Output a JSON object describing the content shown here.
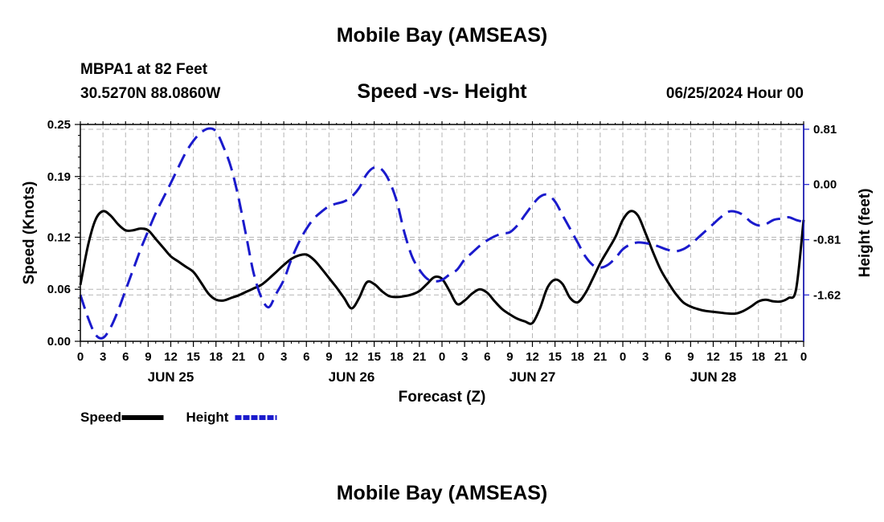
{
  "header": {
    "title": "Mobile Bay (AMSEAS)",
    "station": "MBPA1 at 82 Feet",
    "coords": "30.5270N  88.0860W",
    "datetime": "06/25/2024 Hour 00",
    "footer_title": "Mobile Bay (AMSEAS)"
  },
  "chart_data": {
    "type": "line",
    "title": "Speed -vs- Height",
    "xlabel": "Forecast (Z)",
    "ylabel_left": "Speed (Knots)",
    "ylabel_right": "Height (feet)",
    "x_range_hours": [
      0,
      96
    ],
    "x_tick_labels": [
      "0",
      "3",
      "6",
      "9",
      "12",
      "15",
      "18",
      "21",
      "0",
      "3",
      "6",
      "9",
      "12",
      "15",
      "18",
      "21",
      "0",
      "3",
      "6",
      "9",
      "12",
      "15",
      "18",
      "21",
      "0",
      "3",
      "6",
      "9",
      "12",
      "15",
      "18",
      "21",
      "0"
    ],
    "day_labels": [
      {
        "label": "JUN 25",
        "hour": 12
      },
      {
        "label": "JUN 26",
        "hour": 36
      },
      {
        "label": "JUN 27",
        "hour": 60
      },
      {
        "label": "JUN 28",
        "hour": 84
      }
    ],
    "y_left": {
      "ticks": [
        0.0,
        0.06,
        0.12,
        0.19,
        0.25
      ],
      "tick_labels": [
        "0.00",
        "0.06",
        "0.12",
        "0.19",
        "0.25"
      ],
      "range": [
        0,
        0.25
      ]
    },
    "y_right": {
      "ticks": [
        -1.62,
        -0.81,
        0.0,
        0.81
      ],
      "tick_labels": [
        "-1.62",
        "-0.81",
        "0.00",
        "0.81"
      ],
      "range": [
        -2.3,
        0.88
      ]
    },
    "legend": [
      {
        "name": "Speed",
        "color": "#000000",
        "style": "solid"
      },
      {
        "name": "Height",
        "color": "#1a1acc",
        "style": "dashed"
      }
    ],
    "series": [
      {
        "name": "Speed",
        "axis": "left",
        "color": "#000000",
        "points": [
          [
            0,
            0.065
          ],
          [
            1,
            0.11
          ],
          [
            2,
            0.14
          ],
          [
            3,
            0.15
          ],
          [
            4,
            0.145
          ],
          [
            5,
            0.135
          ],
          [
            6,
            0.128
          ],
          [
            7,
            0.128
          ],
          [
            8,
            0.13
          ],
          [
            9,
            0.128
          ],
          [
            10,
            0.118
          ],
          [
            11,
            0.108
          ],
          [
            12,
            0.098
          ],
          [
            13,
            0.092
          ],
          [
            14,
            0.086
          ],
          [
            15,
            0.08
          ],
          [
            16,
            0.068
          ],
          [
            17,
            0.055
          ],
          [
            18,
            0.048
          ],
          [
            19,
            0.047
          ],
          [
            20,
            0.05
          ],
          [
            21,
            0.053
          ],
          [
            22,
            0.057
          ],
          [
            23,
            0.061
          ],
          [
            24,
            0.065
          ],
          [
            25,
            0.072
          ],
          [
            26,
            0.08
          ],
          [
            27,
            0.088
          ],
          [
            28,
            0.095
          ],
          [
            29,
            0.099
          ],
          [
            30,
            0.1
          ],
          [
            31,
            0.094
          ],
          [
            32,
            0.084
          ],
          [
            33,
            0.073
          ],
          [
            34,
            0.062
          ],
          [
            35,
            0.05
          ],
          [
            36,
            0.038
          ],
          [
            37,
            0.05
          ],
          [
            38,
            0.068
          ],
          [
            39,
            0.066
          ],
          [
            40,
            0.058
          ],
          [
            41,
            0.052
          ],
          [
            42,
            0.051
          ],
          [
            43,
            0.052
          ],
          [
            44,
            0.054
          ],
          [
            45,
            0.058
          ],
          [
            46,
            0.066
          ],
          [
            47,
            0.074
          ],
          [
            48,
            0.072
          ],
          [
            49,
            0.058
          ],
          [
            50,
            0.043
          ],
          [
            51,
            0.047
          ],
          [
            52,
            0.055
          ],
          [
            53,
            0.06
          ],
          [
            54,
            0.056
          ],
          [
            55,
            0.046
          ],
          [
            56,
            0.037
          ],
          [
            57,
            0.031
          ],
          [
            58,
            0.026
          ],
          [
            59,
            0.023
          ],
          [
            60,
            0.021
          ],
          [
            61,
            0.038
          ],
          [
            62,
            0.062
          ],
          [
            63,
            0.071
          ],
          [
            64,
            0.066
          ],
          [
            65,
            0.05
          ],
          [
            66,
            0.045
          ],
          [
            67,
            0.055
          ],
          [
            68,
            0.072
          ],
          [
            69,
            0.09
          ],
          [
            70,
            0.105
          ],
          [
            71,
            0.12
          ],
          [
            72,
            0.14
          ],
          [
            73,
            0.15
          ],
          [
            74,
            0.145
          ],
          [
            75,
            0.125
          ],
          [
            76,
            0.103
          ],
          [
            77,
            0.083
          ],
          [
            78,
            0.068
          ],
          [
            79,
            0.055
          ],
          [
            80,
            0.045
          ],
          [
            81,
            0.04
          ],
          [
            82,
            0.037
          ],
          [
            83,
            0.035
          ],
          [
            84,
            0.034
          ],
          [
            85,
            0.033
          ],
          [
            86,
            0.032
          ],
          [
            87,
            0.032
          ],
          [
            88,
            0.035
          ],
          [
            89,
            0.04
          ],
          [
            90,
            0.046
          ],
          [
            91,
            0.048
          ],
          [
            92,
            0.046
          ],
          [
            93,
            0.046
          ],
          [
            94,
            0.05
          ],
          [
            95,
            0.06
          ],
          [
            96,
            0.14
          ]
        ]
      },
      {
        "name": "Height",
        "axis": "right",
        "color": "#1a1acc",
        "points": [
          [
            0,
            -1.62
          ],
          [
            1,
            -1.95
          ],
          [
            2,
            -2.2
          ],
          [
            3,
            -2.25
          ],
          [
            4,
            -2.1
          ],
          [
            5,
            -1.85
          ],
          [
            6,
            -1.55
          ],
          [
            7,
            -1.25
          ],
          [
            8,
            -0.95
          ],
          [
            9,
            -0.68
          ],
          [
            10,
            -0.42
          ],
          [
            11,
            -0.2
          ],
          [
            12,
            0.02
          ],
          [
            13,
            0.25
          ],
          [
            14,
            0.47
          ],
          [
            15,
            0.64
          ],
          [
            16,
            0.76
          ],
          [
            17,
            0.82
          ],
          [
            18,
            0.78
          ],
          [
            19,
            0.55
          ],
          [
            20,
            0.25
          ],
          [
            21,
            -0.2
          ],
          [
            22,
            -0.75
          ],
          [
            23,
            -1.3
          ],
          [
            24,
            -1.65
          ],
          [
            25,
            -1.8
          ],
          [
            26,
            -1.6
          ],
          [
            27,
            -1.4
          ],
          [
            28,
            -1.1
          ],
          [
            29,
            -0.85
          ],
          [
            30,
            -0.65
          ],
          [
            31,
            -0.5
          ],
          [
            32,
            -0.4
          ],
          [
            33,
            -0.32
          ],
          [
            34,
            -0.28
          ],
          [
            35,
            -0.25
          ],
          [
            36,
            -0.18
          ],
          [
            37,
            -0.05
          ],
          [
            38,
            0.15
          ],
          [
            39,
            0.25
          ],
          [
            40,
            0.22
          ],
          [
            41,
            0.05
          ],
          [
            42,
            -0.25
          ],
          [
            43,
            -0.7
          ],
          [
            44,
            -1.05
          ],
          [
            45,
            -1.25
          ],
          [
            46,
            -1.38
          ],
          [
            47,
            -1.42
          ],
          [
            48,
            -1.4
          ],
          [
            49,
            -1.32
          ],
          [
            50,
            -1.25
          ],
          [
            51,
            -1.1
          ],
          [
            52,
            -1.0
          ],
          [
            53,
            -0.9
          ],
          [
            54,
            -0.82
          ],
          [
            55,
            -0.76
          ],
          [
            56,
            -0.72
          ],
          [
            57,
            -0.7
          ],
          [
            58,
            -0.6
          ],
          [
            59,
            -0.45
          ],
          [
            60,
            -0.3
          ],
          [
            61,
            -0.18
          ],
          [
            62,
            -0.15
          ],
          [
            63,
            -0.25
          ],
          [
            64,
            -0.45
          ],
          [
            65,
            -0.65
          ],
          [
            66,
            -0.85
          ],
          [
            67,
            -1.05
          ],
          [
            68,
            -1.18
          ],
          [
            69,
            -1.22
          ],
          [
            70,
            -1.18
          ],
          [
            71,
            -1.08
          ],
          [
            72,
            -0.95
          ],
          [
            73,
            -0.88
          ],
          [
            74,
            -0.85
          ],
          [
            75,
            -0.86
          ],
          [
            76,
            -0.88
          ],
          [
            77,
            -0.92
          ],
          [
            78,
            -0.96
          ],
          [
            79,
            -0.98
          ],
          [
            80,
            -0.95
          ],
          [
            81,
            -0.88
          ],
          [
            82,
            -0.78
          ],
          [
            83,
            -0.68
          ],
          [
            84,
            -0.58
          ],
          [
            85,
            -0.48
          ],
          [
            86,
            -0.4
          ],
          [
            87,
            -0.4
          ],
          [
            88,
            -0.45
          ],
          [
            89,
            -0.55
          ],
          [
            90,
            -0.6
          ],
          [
            91,
            -0.58
          ],
          [
            92,
            -0.52
          ],
          [
            93,
            -0.5
          ],
          [
            94,
            -0.48
          ],
          [
            95,
            -0.52
          ],
          [
            96,
            -0.55
          ]
        ]
      }
    ]
  }
}
